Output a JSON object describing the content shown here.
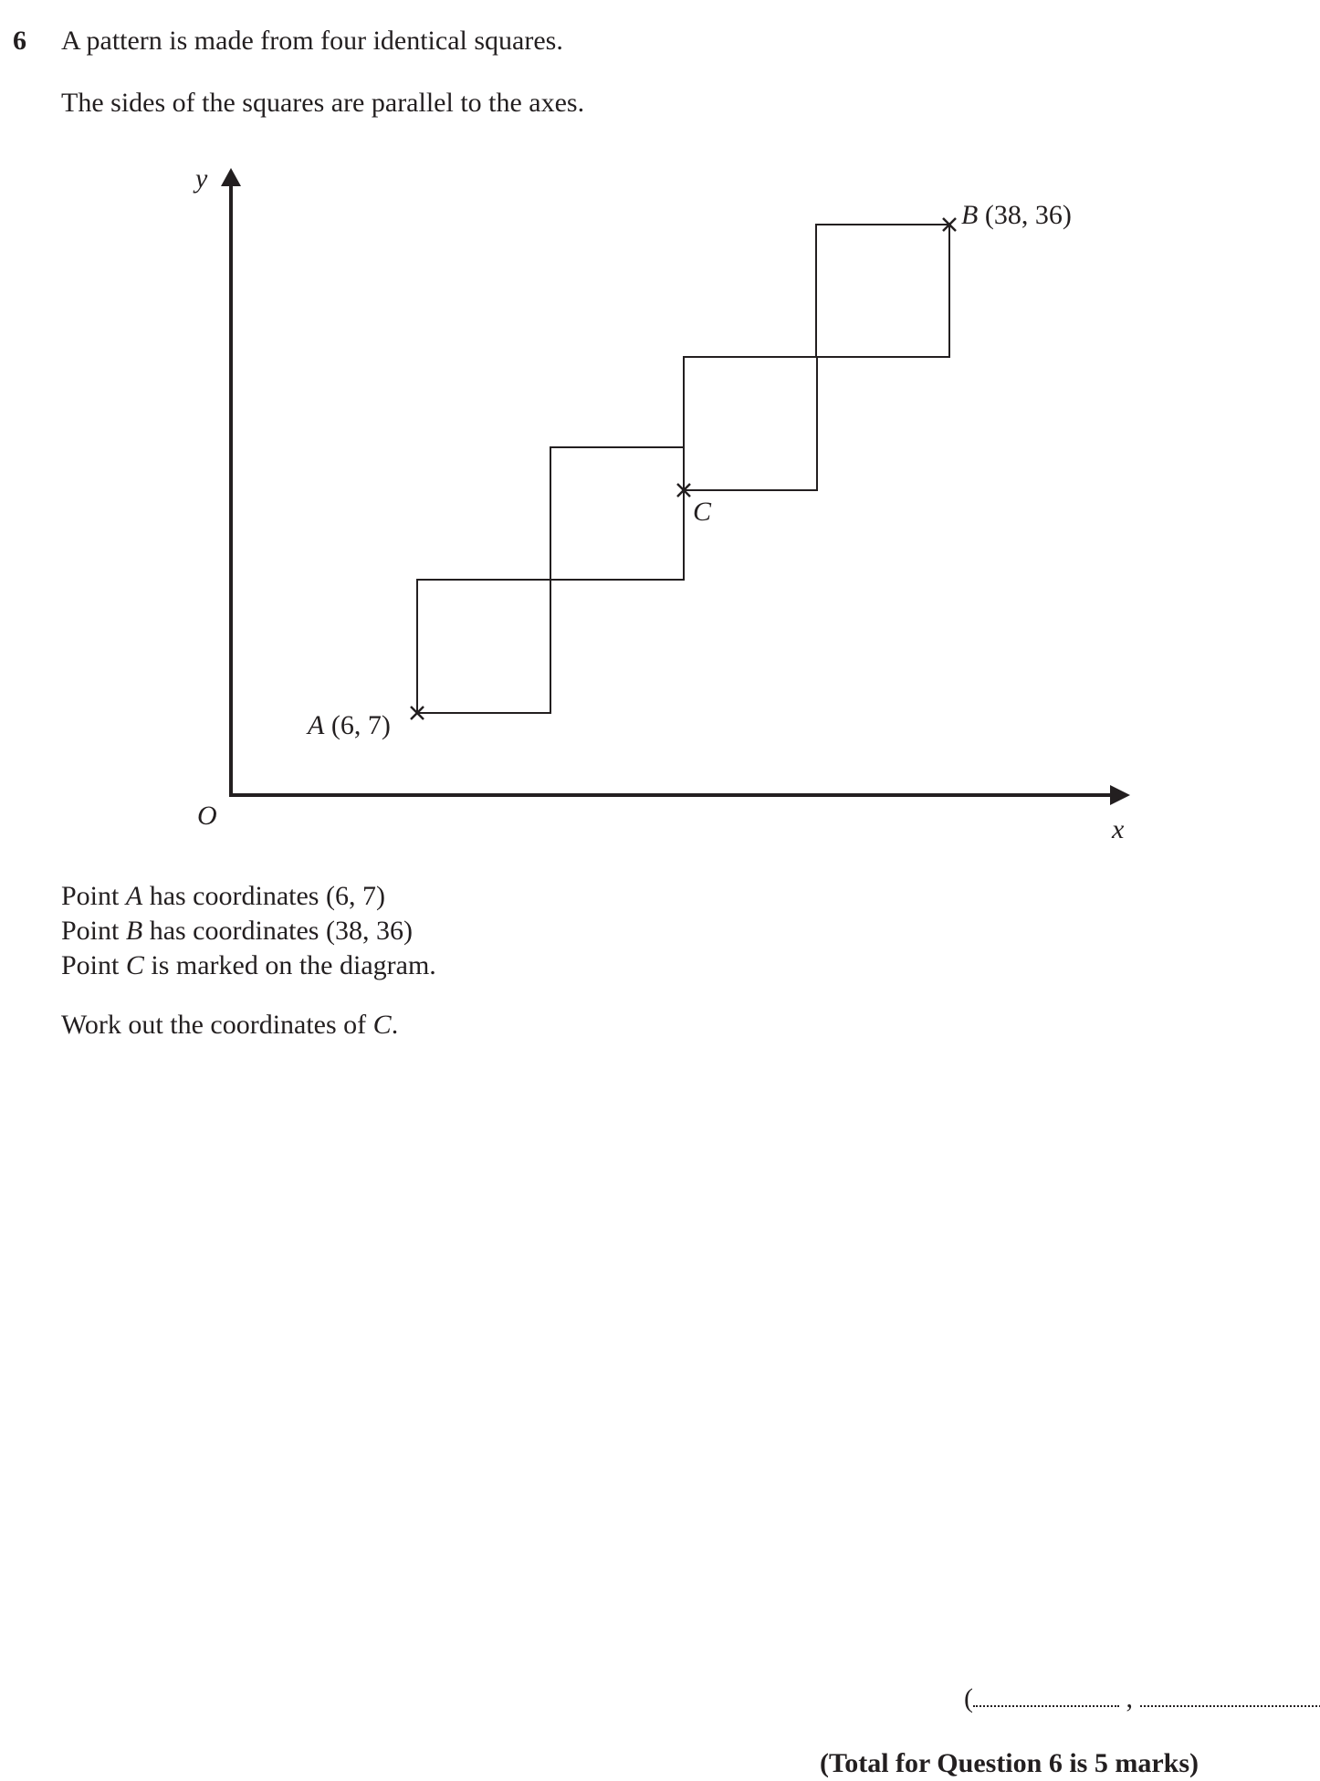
{
  "question": {
    "number": "6",
    "line1": "A pattern is made from four identical squares.",
    "line2": "The sides of the squares are parallel to the axes."
  },
  "diagram": {
    "y_axis_label": "y",
    "x_axis_label": "x",
    "origin_label": "O",
    "point_a_letter": "A",
    "point_a_coords": " (6, 7)",
    "point_b_letter": "B",
    "point_b_coords": " (38, 36)",
    "point_c_letter": "C"
  },
  "statements": {
    "s1_pre": "Point ",
    "s1_letter": "A",
    "s1_post": " has coordinates (6, 7)",
    "s2_pre": "Point ",
    "s2_letter": "B",
    "s2_post": " has coordinates (38, 36)",
    "s3_pre": "Point ",
    "s3_letter": "C",
    "s3_post": " is marked on the diagram."
  },
  "task": {
    "pre": "Work out the coordinates of ",
    "letter": "C",
    "post": "."
  },
  "answer": {
    "open": "(",
    "comma": " , ",
    "close": ")"
  },
  "footer": {
    "total": "(Total for Question 6 is 5 marks)"
  }
}
